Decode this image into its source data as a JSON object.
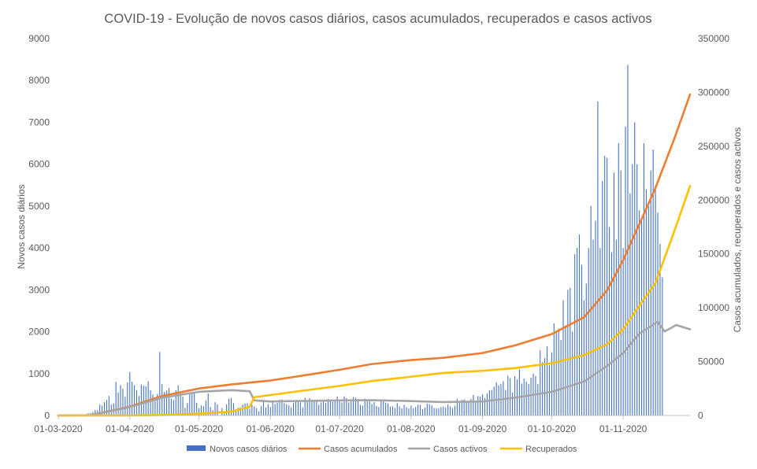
{
  "chart_data": {
    "type": "bar+line",
    "title": "COVID-19 - Evolução de novos casos diários, casos acumulados, recuperados e casos activos",
    "ylabel_left": "Novos casos diários",
    "ylabel_right": "Casos acumulados, recuperados e casos activos",
    "y_left_range": [
      0,
      9000
    ],
    "y_left_ticks": [
      "0",
      "1000",
      "2000",
      "3000",
      "4000",
      "5000",
      "6000",
      "7000",
      "8000",
      "9000"
    ],
    "y_right_range": [
      0,
      350000
    ],
    "y_right_ticks": [
      "0",
      "50000",
      "100000",
      "150000",
      "200000",
      "250000",
      "300000",
      "350000"
    ],
    "x_range": [
      "2020-03-01",
      "2020-11-30"
    ],
    "x_tick_labels": [
      "01-03-2020",
      "01-04-2020",
      "01-05-2020",
      "01-06-2020",
      "01-07-2020",
      "01-08-2020",
      "01-09-2020",
      "01-10-2020",
      "01-11-2020"
    ],
    "x_tick_dates": [
      "2020-03-01",
      "2020-04-01",
      "2020-05-01",
      "2020-06-01",
      "2020-07-01",
      "2020-08-01",
      "2020-09-01",
      "2020-10-01",
      "2020-11-01"
    ],
    "legend_position": "bottom",
    "gridlines": false,
    "bar_series": {
      "name": "Novos casos diários",
      "color": "#4472C4",
      "axis": "left",
      "start_date": "2020-03-01",
      "values": [
        0,
        0,
        2,
        2,
        0,
        5,
        8,
        9,
        9,
        0,
        20,
        27,
        34,
        60,
        59,
        86,
        133,
        123,
        260,
        235,
        320,
        372,
        464,
        260,
        290,
        803,
        549,
        724,
        641,
        446,
        792,
        1035,
        808,
        724,
        607,
        465,
        739,
        712,
        699,
        815,
        598,
        504,
        349,
        515,
        1516,
        750,
        563,
        595,
        657,
        405,
        371,
        603,
        724,
        571,
        444,
        181,
        295,
        516,
        533,
        553,
        305,
        173,
        242,
        221,
        357,
        528,
        205,
        129,
        316,
        264,
        0,
        175,
        96,
        265,
        403,
        418,
        292,
        128,
        184,
        194,
        264,
        289,
        293,
        163,
        257,
        219,
        173,
        98,
        228,
        353,
        189,
        271,
        200,
        350,
        277,
        300,
        377,
        382,
        295,
        267,
        242,
        192,
        304,
        336,
        331,
        313,
        195,
        421,
        346,
        417,
        328,
        365,
        377,
        259,
        311,
        367,
        300,
        393,
        374,
        325,
        343,
        451,
        347,
        311,
        457,
        413,
        313,
        338,
        443,
        423,
        392,
        254,
        232,
        402,
        375,
        336,
        273,
        321,
        229,
        204,
        339,
        364,
        308,
        286,
        209,
        219,
        177,
        294,
        214,
        172,
        254,
        201,
        168,
        237,
        170,
        204,
        257,
        253,
        148,
        193,
        279,
        271,
        243,
        178,
        171,
        171,
        204,
        216,
        190,
        262,
        213,
        179,
        231,
        400,
        300,
        373,
        383,
        325,
        332,
        398,
        489,
        343,
        463,
        450,
        503,
        420,
        523,
        601,
        610,
        690,
        790,
        725,
        750,
        820,
        610,
        950,
        890,
        550,
        940,
        860,
        1100,
        760,
        880,
        810,
        750,
        900,
        1000,
        940,
        750,
        1560,
        1270,
        1370,
        1650,
        1200,
        1510,
        2200,
        2000,
        2072,
        1800,
        2750,
        2150,
        3000,
        3050,
        2000,
        3850,
        4000,
        4320,
        3600,
        2750,
        3150,
        4000,
        5000,
        4200,
        4650,
        7500,
        4000,
        5600,
        6200,
        6150,
        4500,
        3900,
        5800,
        4200,
        6500,
        5850,
        4000,
        6900,
        8370,
        5300,
        6000,
        7000,
        6000,
        4900,
        4700,
        6500,
        5400,
        5000,
        5850,
        6350,
        5500,
        4850,
        4100,
        3300
      ]
    },
    "line_series": [
      {
        "name": "Casos acumulados",
        "color": "#ED7D31",
        "axis": "right",
        "points": [
          [
            "2020-03-01",
            0
          ],
          [
            "2020-03-15",
            245
          ],
          [
            "2020-04-01",
            8251
          ],
          [
            "2020-04-15",
            18091
          ],
          [
            "2020-05-01",
            25045
          ],
          [
            "2020-05-15",
            28810
          ],
          [
            "2020-06-01",
            32500
          ],
          [
            "2020-06-15",
            37036
          ],
          [
            "2020-07-01",
            42454
          ],
          [
            "2020-07-15",
            47765
          ],
          [
            "2020-08-01",
            51463
          ],
          [
            "2020-08-15",
            53548
          ],
          [
            "2020-09-01",
            58012
          ],
          [
            "2020-09-15",
            65021
          ],
          [
            "2020-10-01",
            75542
          ],
          [
            "2020-10-15",
            91193
          ],
          [
            "2020-10-25",
            116109
          ],
          [
            "2020-11-01",
            144341
          ],
          [
            "2020-11-10",
            187237
          ],
          [
            "2020-11-15",
            211266
          ],
          [
            "2020-11-23",
            255970
          ],
          [
            "2020-11-30",
            298061
          ]
        ]
      },
      {
        "name": "Casos activos",
        "color": "#A5A5A5",
        "axis": "right",
        "points": [
          [
            "2020-03-01",
            0
          ],
          [
            "2020-03-15",
            240
          ],
          [
            "2020-04-01",
            7800
          ],
          [
            "2020-04-15",
            16500
          ],
          [
            "2020-05-01",
            22000
          ],
          [
            "2020-05-15",
            23500
          ],
          [
            "2020-05-23",
            22500
          ],
          [
            "2020-05-25",
            14000
          ],
          [
            "2020-06-01",
            13000
          ],
          [
            "2020-06-15",
            13500
          ],
          [
            "2020-07-01",
            14000
          ],
          [
            "2020-07-15",
            14200
          ],
          [
            "2020-08-01",
            13400
          ],
          [
            "2020-08-15",
            12500
          ],
          [
            "2020-09-01",
            13000
          ],
          [
            "2020-09-15",
            16500
          ],
          [
            "2020-10-01",
            22000
          ],
          [
            "2020-10-15",
            31500
          ],
          [
            "2020-10-25",
            46000
          ],
          [
            "2020-11-01",
            58000
          ],
          [
            "2020-11-08",
            76000
          ],
          [
            "2020-11-16",
            87000
          ],
          [
            "2020-11-19",
            78000
          ],
          [
            "2020-11-24",
            84000
          ],
          [
            "2020-11-30",
            80000
          ]
        ]
      },
      {
        "name": "Recuperados",
        "color": "#FFC000",
        "axis": "right",
        "points": [
          [
            "2020-03-01",
            0
          ],
          [
            "2020-04-01",
            43
          ],
          [
            "2020-04-15",
            383
          ],
          [
            "2020-05-01",
            1647
          ],
          [
            "2020-05-15",
            3563
          ],
          [
            "2020-05-23",
            8000
          ],
          [
            "2020-05-25",
            17000
          ],
          [
            "2020-06-01",
            19000
          ],
          [
            "2020-06-15",
            23000
          ],
          [
            "2020-07-01",
            27500
          ],
          [
            "2020-07-15",
            32000
          ],
          [
            "2020-08-01",
            36000
          ],
          [
            "2020-08-15",
            39500
          ],
          [
            "2020-09-01",
            41500
          ],
          [
            "2020-09-15",
            44000
          ],
          [
            "2020-10-01",
            48500
          ],
          [
            "2020-10-15",
            56000
          ],
          [
            "2020-10-25",
            66000
          ],
          [
            "2020-11-01",
            80000
          ],
          [
            "2020-11-10",
            108000
          ],
          [
            "2020-11-15",
            123000
          ],
          [
            "2020-11-23",
            170000
          ],
          [
            "2020-11-30",
            213000
          ]
        ]
      }
    ],
    "legend": [
      "Novos casos diários",
      "Casos acumulados",
      "Casos activos",
      "Recuperados"
    ]
  }
}
